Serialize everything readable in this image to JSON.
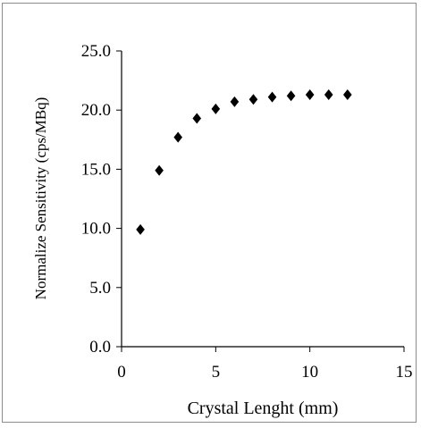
{
  "chart_data": {
    "type": "scatter",
    "xlabel": "Crystal Lenght  (mm)",
    "ylabel": "Normalize  Sensitivity (cps/MBq)",
    "xlim": [
      0,
      15
    ],
    "ylim": [
      0,
      25
    ],
    "x_ticks": [
      "0",
      "5",
      "10",
      "15"
    ],
    "y_ticks": [
      "0.0",
      "5.0",
      "10.0",
      "15.0",
      "20.0",
      "25.0"
    ],
    "grid": false,
    "legend": "none",
    "marker": "diamond",
    "marker_color": "#000000",
    "series": [
      {
        "x": [
          1,
          2,
          3,
          4,
          5,
          6,
          7,
          8,
          9,
          10,
          11,
          12
        ],
        "y": [
          9.9,
          14.9,
          17.7,
          19.3,
          20.1,
          20.7,
          20.9,
          21.1,
          21.2,
          21.3,
          21.3,
          21.3
        ]
      }
    ]
  }
}
